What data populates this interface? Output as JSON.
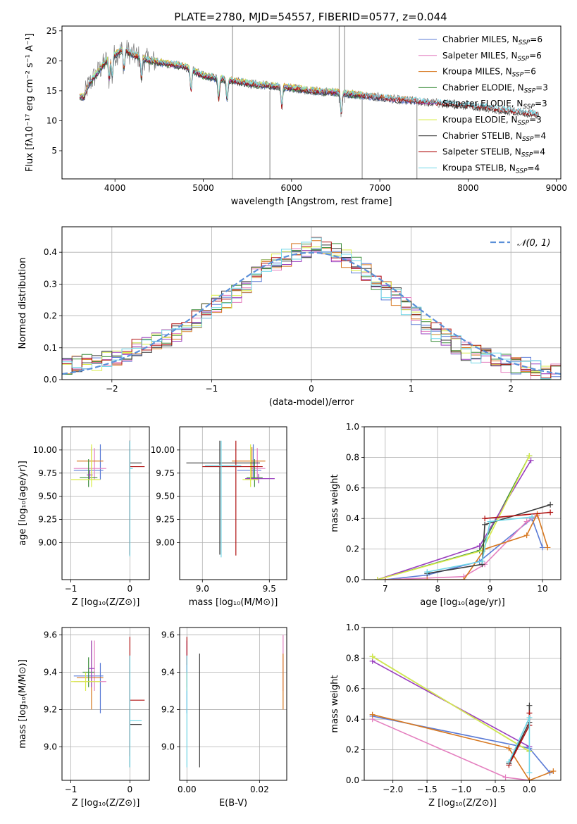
{
  "title": "PLATE=2780, MJD=54557, FIBERID=0577, z=0.044",
  "colors": {
    "Chabrier MILES": "#5b7bd6",
    "Salpeter MILES": "#e47fbf",
    "Kroupa MILES": "#d77820",
    "Chabrier ELODIE": "#3f8f3f",
    "Salpeter ELODIE": "#9a3fbf",
    "Kroupa ELODIE": "#d9ec4a",
    "Chabrier STELIB": "#3b3b3b",
    "Salpeter STELIB": "#b01010",
    "Kroupa STELIB": "#6fd7e8",
    "data": "#777777",
    "gaussian": "#5a8fd8"
  },
  "chart_data": [
    {
      "id": "spectrum",
      "type": "line",
      "xlabel": "wavelength [Angstrom, rest frame]",
      "ylabel": "Flux [fλ10⁻¹⁷ erg cm⁻² s⁻¹ A⁻¹]",
      "xlim": [
        3400,
        9050
      ],
      "ylim": [
        0.3,
        25.8
      ],
      "xticks": [
        4000,
        5000,
        6000,
        7000,
        8000,
        9000
      ],
      "yticks": [
        5,
        10,
        15,
        20,
        25
      ],
      "legend_placement": "top-right",
      "legend": [
        "Chabrier MILES, N_SSP=6",
        "Salpeter MILES, N_SSP=6",
        "Kroupa MILES, N_SSP=6",
        "Chabrier ELODIE, N_SSP=3",
        "Salpeter ELODIE, N_SSP=3",
        "Kroupa ELODIE, N_SSP=3",
        "Chabrier STELIB, N_SSP=4",
        "Salpeter STELIB, N_SSP=4",
        "Kroupa STELIB, N_SSP=4"
      ],
      "data_continuum": {
        "x": [
          3650,
          3700,
          3800,
          3900,
          4000,
          4100,
          4200,
          4400,
          4600,
          4800,
          5000,
          5200,
          5400,
          5600,
          5800,
          6000,
          6200,
          6400,
          6600,
          6800,
          7000,
          7200,
          7400,
          7600,
          7800,
          8000,
          8200,
          8400,
          8600,
          8800
        ],
        "y": [
          14,
          16,
          18,
          20,
          21,
          22,
          21,
          20,
          19.5,
          19,
          17.5,
          17,
          16.5,
          16,
          15.8,
          15.5,
          15,
          14.8,
          14.6,
          14.2,
          13.9,
          13.5,
          13.3,
          13,
          12.8,
          12.5,
          12.2,
          11.8,
          11.4,
          11
        ]
      },
      "data_spikes": [
        {
          "x": 5330,
          "y_low": 0.3,
          "y_high": 25.8
        },
        {
          "x": 5755,
          "y_low": 0.3,
          "y_high": 15
        },
        {
          "x": 6540,
          "y_low": 13,
          "y_high": 25.8
        },
        {
          "x": 6600,
          "y_low": 13,
          "y_high": 25.8
        },
        {
          "x": 6800,
          "y_low": 0.3,
          "y_high": 14
        },
        {
          "x": 7420,
          "y_low": 0.3,
          "y_high": 13
        }
      ],
      "model_range": {
        "MILES": [
          3600,
          7420
        ],
        "ELODIE": [
          3600,
          6800
        ],
        "STELIB": [
          3600,
          8800
        ]
      }
    },
    {
      "id": "residuals",
      "type": "line",
      "xlabel": "(data-model)/error",
      "ylabel": "Normed distribution",
      "xlim": [
        -2.5,
        2.5
      ],
      "ylim": [
        0,
        0.48
      ],
      "xticks": [
        -2,
        -1,
        0,
        1,
        2
      ],
      "yticks": [
        0.0,
        0.1,
        0.2,
        0.3,
        0.4
      ],
      "grid": true,
      "legend_placement": "top-right",
      "legend": [
        "𝒩(0, 1)"
      ],
      "bin_width": 0.1,
      "bin_start": -2.5,
      "histogram_base": [
        0.04,
        0.045,
        0.05,
        0.05,
        0.06,
        0.07,
        0.08,
        0.1,
        0.11,
        0.12,
        0.13,
        0.15,
        0.17,
        0.19,
        0.21,
        0.24,
        0.25,
        0.27,
        0.3,
        0.33,
        0.35,
        0.37,
        0.38,
        0.4,
        0.41,
        0.42,
        0.41,
        0.4,
        0.38,
        0.36,
        0.34,
        0.31,
        0.28,
        0.26,
        0.23,
        0.2,
        0.17,
        0.15,
        0.13,
        0.11,
        0.09,
        0.08,
        0.07,
        0.06,
        0.05,
        0.045,
        0.04,
        0.03,
        0.03,
        0.02
      ],
      "gaussian": {
        "mu": 0,
        "sigma": 1
      }
    },
    {
      "id": "age-vs-Z",
      "type": "scatter",
      "xlabel": "Z [log₁₀(Z/Z⊙)]",
      "ylabel": "age  [log₁₀(age/yr)]",
      "xlim": [
        -1.15,
        0.33
      ],
      "ylim": [
        8.6,
        10.25
      ],
      "xticks": [
        -1,
        0
      ],
      "yticks": [
        9.0,
        9.25,
        9.5,
        9.75,
        10.0
      ],
      "grid": true,
      "points": [
        {
          "model": "Chabrier MILES",
          "x": -0.5,
          "y": 9.78,
          "xerr": [
            0.45,
            0.05
          ],
          "yerr": [
            0.1,
            0.28
          ]
        },
        {
          "model": "Salpeter MILES",
          "x": -0.6,
          "y": 9.8,
          "xerr": [
            0.35,
            0.2
          ],
          "yerr": [
            0.12,
            0.22
          ]
        },
        {
          "model": "Kroupa MILES",
          "x": -0.65,
          "y": 9.88,
          "xerr": [
            0.25,
            0.2
          ],
          "yerr": [
            0.2,
            0.15
          ]
        },
        {
          "model": "Chabrier ELODIE",
          "x": -0.7,
          "y": 9.7,
          "xerr": [
            0.15,
            0.15
          ],
          "yerr": [
            0.1,
            0.2
          ]
        },
        {
          "model": "Salpeter ELODIE",
          "x": -0.68,
          "y": 9.73,
          "xerr": [
            0.05,
            0.05
          ],
          "yerr": [
            0.05,
            0.05
          ]
        },
        {
          "model": "Kroupa ELODIE",
          "x": -0.65,
          "y": 9.68,
          "xerr": [
            0.35,
            0.15
          ],
          "yerr": [
            0.08,
            0.38
          ]
        },
        {
          "model": "Chabrier STELIB",
          "x": 0,
          "y": 9.86,
          "xerr": [
            0.0,
            0.2
          ],
          "yerr": [
            1.0,
            0.24
          ]
        },
        {
          "model": "Salpeter STELIB",
          "x": 0,
          "y": 9.82,
          "xerr": [
            0.0,
            0.25
          ],
          "yerr": [
            0.95,
            0.28
          ]
        },
        {
          "model": "Kroupa STELIB",
          "x": 0,
          "y": 9.8,
          "xerr": [
            0.0,
            0.05
          ],
          "yerr": [
            0.95,
            0.3
          ]
        }
      ]
    },
    {
      "id": "age-vs-mass",
      "type": "scatter",
      "xlabel": "mass [log₁₀(M/M⊙)]",
      "ylabel": "",
      "xlim": [
        8.83,
        9.63
      ],
      "ylim": [
        8.6,
        10.25
      ],
      "xticks": [
        9.0,
        9.5
      ],
      "yticks": [
        9.0,
        9.25,
        9.5,
        9.75,
        10.0
      ],
      "grid": true,
      "points": [
        {
          "model": "Chabrier MILES",
          "x": 9.38,
          "y": 9.78,
          "xerr": [
            0.12,
            0.06
          ],
          "yerr": [
            0.1,
            0.28
          ]
        },
        {
          "model": "Salpeter MILES",
          "x": 9.41,
          "y": 9.8,
          "xerr": [
            0.05,
            0.06
          ],
          "yerr": [
            0.12,
            0.22
          ]
        },
        {
          "model": "Kroupa MILES",
          "x": 9.37,
          "y": 9.88,
          "xerr": [
            0.15,
            0.1
          ],
          "yerr": [
            0.2,
            0.15
          ]
        },
        {
          "model": "Chabrier ELODIE",
          "x": 9.39,
          "y": 9.7,
          "xerr": [
            0.06,
            0.06
          ],
          "yerr": [
            0.1,
            0.2
          ]
        },
        {
          "model": "Salpeter ELODIE",
          "x": 9.42,
          "y": 9.69,
          "xerr": [
            0.1,
            0.12
          ],
          "yerr": [
            0.05,
            0.05
          ]
        },
        {
          "model": "Kroupa ELODIE",
          "x": 9.36,
          "y": 9.68,
          "xerr": [
            0.06,
            0.06
          ],
          "yerr": [
            0.08,
            0.38
          ]
        },
        {
          "model": "Chabrier STELIB",
          "x": 9.13,
          "y": 9.86,
          "xerr": [
            0.25,
            0.3
          ],
          "yerr": [
            0.99,
            0.24
          ]
        },
        {
          "model": "Salpeter STELIB",
          "x": 9.25,
          "y": 9.82,
          "xerr": [
            0.25,
            0.2
          ],
          "yerr": [
            0.96,
            0.28
          ]
        },
        {
          "model": "Kroupa STELIB",
          "x": 9.14,
          "y": 9.83,
          "xerr": [
            0.12,
            0.15
          ],
          "yerr": [
            0.99,
            0.27
          ]
        }
      ]
    },
    {
      "id": "mass-weight-vs-age",
      "type": "line",
      "xlabel": "age  [log₁₀(age/yr)]",
      "ylabel": "mass weight",
      "xlim": [
        6.6,
        10.35
      ],
      "ylim": [
        0,
        1.0
      ],
      "xticks": [
        7,
        8,
        9,
        10
      ],
      "yticks": [
        0.0,
        0.2,
        0.4,
        0.6,
        0.8,
        1.0
      ],
      "grid": true,
      "series": [
        {
          "model": "Chabrier MILES",
          "x": [
            7.0,
            7.8,
            8.8,
            9.8,
            10.0
          ],
          "y": [
            0.0,
            0.03,
            0.12,
            0.4,
            0.21
          ]
        },
        {
          "model": "Salpeter MILES",
          "x": [
            7.0,
            7.8,
            8.5,
            8.9,
            9.7,
            9.9
          ],
          "y": [
            0.0,
            0.01,
            0.02,
            0.1,
            0.38,
            0.42
          ]
        },
        {
          "model": "Kroupa MILES",
          "x": [
            7.0,
            7.8,
            8.5,
            8.9,
            9.7,
            9.9,
            10.1
          ],
          "y": [
            0.0,
            0.0,
            0.0,
            0.2,
            0.29,
            0.43,
            0.21
          ]
        },
        {
          "model": "Chabrier ELODIE",
          "x": [
            6.85,
            8.8,
            9.75
          ],
          "y": [
            0.0,
            0.19,
            0.81
          ]
        },
        {
          "model": "Salpeter ELODIE",
          "x": [
            6.85,
            8.8,
            9.78
          ],
          "y": [
            0.0,
            0.22,
            0.78
          ]
        },
        {
          "model": "Kroupa ELODIE",
          "x": [
            6.85,
            8.85,
            9.75
          ],
          "y": [
            0.0,
            0.19,
            0.81
          ]
        },
        {
          "model": "Chabrier STELIB",
          "x": [
            7.8,
            8.85,
            8.9,
            10.15
          ],
          "y": [
            0.04,
            0.1,
            0.36,
            0.49
          ]
        },
        {
          "model": "Salpeter STELIB",
          "x": [
            8.9,
            10.15
          ],
          "y": [
            0.4,
            0.44
          ]
        },
        {
          "model": "Kroupa STELIB",
          "x": [
            7.8,
            8.85,
            9.0,
            9.8
          ],
          "y": [
            0.05,
            0.12,
            0.38,
            0.41
          ]
        }
      ]
    },
    {
      "id": "mass-vs-Z",
      "type": "scatter",
      "xlabel": "Z [log₁₀(Z/Z⊙)]",
      "ylabel": "mass [log₁₀(M/M⊙)]",
      "xlim": [
        -1.15,
        0.33
      ],
      "ylim": [
        8.82,
        9.64
      ],
      "xticks": [
        -1,
        0
      ],
      "yticks": [
        9.0,
        9.2,
        9.4,
        9.6
      ],
      "grid": true,
      "points": [
        {
          "model": "Chabrier MILES",
          "x": -0.5,
          "y": 9.38,
          "xerr": [
            0.45,
            0.05
          ],
          "yerr": [
            0.2,
            0.07
          ]
        },
        {
          "model": "Salpeter MILES",
          "x": -0.6,
          "y": 9.35,
          "xerr": [
            0.35,
            0.2
          ],
          "yerr": [
            0.05,
            0.22
          ]
        },
        {
          "model": "Kroupa MILES",
          "x": -0.65,
          "y": 9.37,
          "xerr": [
            0.25,
            0.2
          ],
          "yerr": [
            0.17,
            0.2
          ]
        },
        {
          "model": "Chabrier ELODIE",
          "x": -0.7,
          "y": 9.4,
          "xerr": [
            0.1,
            0.1
          ],
          "yerr": [
            0.08,
            0.08
          ]
        },
        {
          "model": "Salpeter ELODIE",
          "x": -0.65,
          "y": 9.42,
          "xerr": [
            0.05,
            0.05
          ],
          "yerr": [
            0.1,
            0.15
          ]
        },
        {
          "model": "Kroupa ELODIE",
          "x": -0.75,
          "y": 9.35,
          "xerr": [
            0.25,
            0.25
          ],
          "yerr": [
            0.05,
            0.05
          ]
        },
        {
          "model": "Chabrier STELIB",
          "x": 0,
          "y": 9.12,
          "xerr": [
            0.0,
            0.2
          ],
          "yerr": [
            0.23,
            0.37
          ]
        },
        {
          "model": "Salpeter STELIB",
          "x": 0,
          "y": 9.25,
          "xerr": [
            0.0,
            0.25
          ],
          "yerr": [
            0.3,
            0.34
          ]
        },
        {
          "model": "Kroupa STELIB",
          "x": 0,
          "y": 9.14,
          "xerr": [
            0.0,
            0.2
          ],
          "yerr": [
            0.25,
            0.35
          ]
        }
      ]
    },
    {
      "id": "mass-vs-EBV",
      "type": "scatter",
      "xlabel": "E(B-V)",
      "ylabel": "",
      "xlim": [
        -0.002,
        0.0275
      ],
      "ylim": [
        8.82,
        9.64
      ],
      "xticks": [
        0.0,
        0.02
      ],
      "yticks": [
        9.0,
        9.2,
        9.4,
        9.6
      ],
      "grid": true,
      "points": [
        {
          "model": "Chabrier MILES",
          "x": 0.0,
          "y": 9.38,
          "yerr": [
            0.2,
            0.07
          ]
        },
        {
          "model": "Salpeter MILES",
          "x": 0.0265,
          "y": 9.35,
          "yerr": [
            0.05,
            0.25
          ]
        },
        {
          "model": "Kroupa MILES",
          "x": 0.0265,
          "y": 9.37,
          "yerr": [
            0.17,
            0.13
          ]
        },
        {
          "model": "Chabrier ELODIE",
          "x": 0.0,
          "y": 9.4,
          "yerr": [
            0.08,
            0.08
          ]
        },
        {
          "model": "Salpeter ELODIE",
          "x": 0.0,
          "y": 9.42,
          "yerr": [
            0.1,
            0.15
          ]
        },
        {
          "model": "Kroupa ELODIE",
          "x": 0.0,
          "y": 9.35,
          "yerr": [
            0.05,
            0.05
          ]
        },
        {
          "model": "Chabrier STELIB",
          "x": 0.0035,
          "y": 9.12,
          "yerr": [
            0.23,
            0.38
          ]
        },
        {
          "model": "Salpeter STELIB",
          "x": 0.0,
          "y": 9.49,
          "yerr": [
            0.05,
            0.1
          ]
        },
        {
          "model": "Kroupa STELIB",
          "x": 0.0,
          "y": 9.14,
          "yerr": [
            0.25,
            0.35
          ]
        }
      ]
    },
    {
      "id": "mass-weight-vs-Z",
      "type": "line",
      "xlabel": "Z [log₁₀(Z/Z⊙)]",
      "ylabel": "mass weight",
      "xlim": [
        -2.42,
        0.46
      ],
      "ylim": [
        0,
        1.0
      ],
      "xticks": [
        -2.0,
        -1.5,
        -1.0,
        -0.5,
        0.0
      ],
      "yticks": [
        0.0,
        0.2,
        0.4,
        0.6,
        0.8,
        1.0
      ],
      "grid": true,
      "series": [
        {
          "model": "Chabrier MILES",
          "x": [
            -2.3,
            0.0,
            0.3
          ],
          "y": [
            0.42,
            0.21,
            0.05
          ]
        },
        {
          "model": "Salpeter MILES",
          "x": [
            -2.3,
            -0.35,
            0.0
          ],
          "y": [
            0.4,
            0.02,
            0.0
          ]
        },
        {
          "model": "Kroupa MILES",
          "x": [
            -2.3,
            -0.3,
            0.0,
            0.35
          ],
          "y": [
            0.43,
            0.21,
            0.0,
            0.06
          ]
        },
        {
          "model": "Chabrier ELODIE",
          "x": [
            -2.3,
            0.0
          ],
          "y": [
            0.81,
            0.19
          ]
        },
        {
          "model": "Salpeter ELODIE",
          "x": [
            -2.3,
            0.0
          ],
          "y": [
            0.78,
            0.22
          ]
        },
        {
          "model": "Kroupa ELODIE",
          "x": [
            -2.3,
            0.0
          ],
          "y": [
            0.81,
            0.19
          ]
        },
        {
          "model": "Chabrier STELIB",
          "x": [
            -0.3,
            0.0,
            0.0
          ],
          "y": [
            0.11,
            0.38,
            0.49
          ]
        },
        {
          "model": "Salpeter STELIB",
          "x": [
            -0.3,
            0.0,
            0.0
          ],
          "y": [
            0.1,
            0.36,
            0.44
          ]
        },
        {
          "model": "Kroupa STELIB",
          "x": [
            -0.3,
            0.0,
            0.0
          ],
          "y": [
            0.12,
            0.41,
            0.05
          ]
        }
      ]
    }
  ]
}
